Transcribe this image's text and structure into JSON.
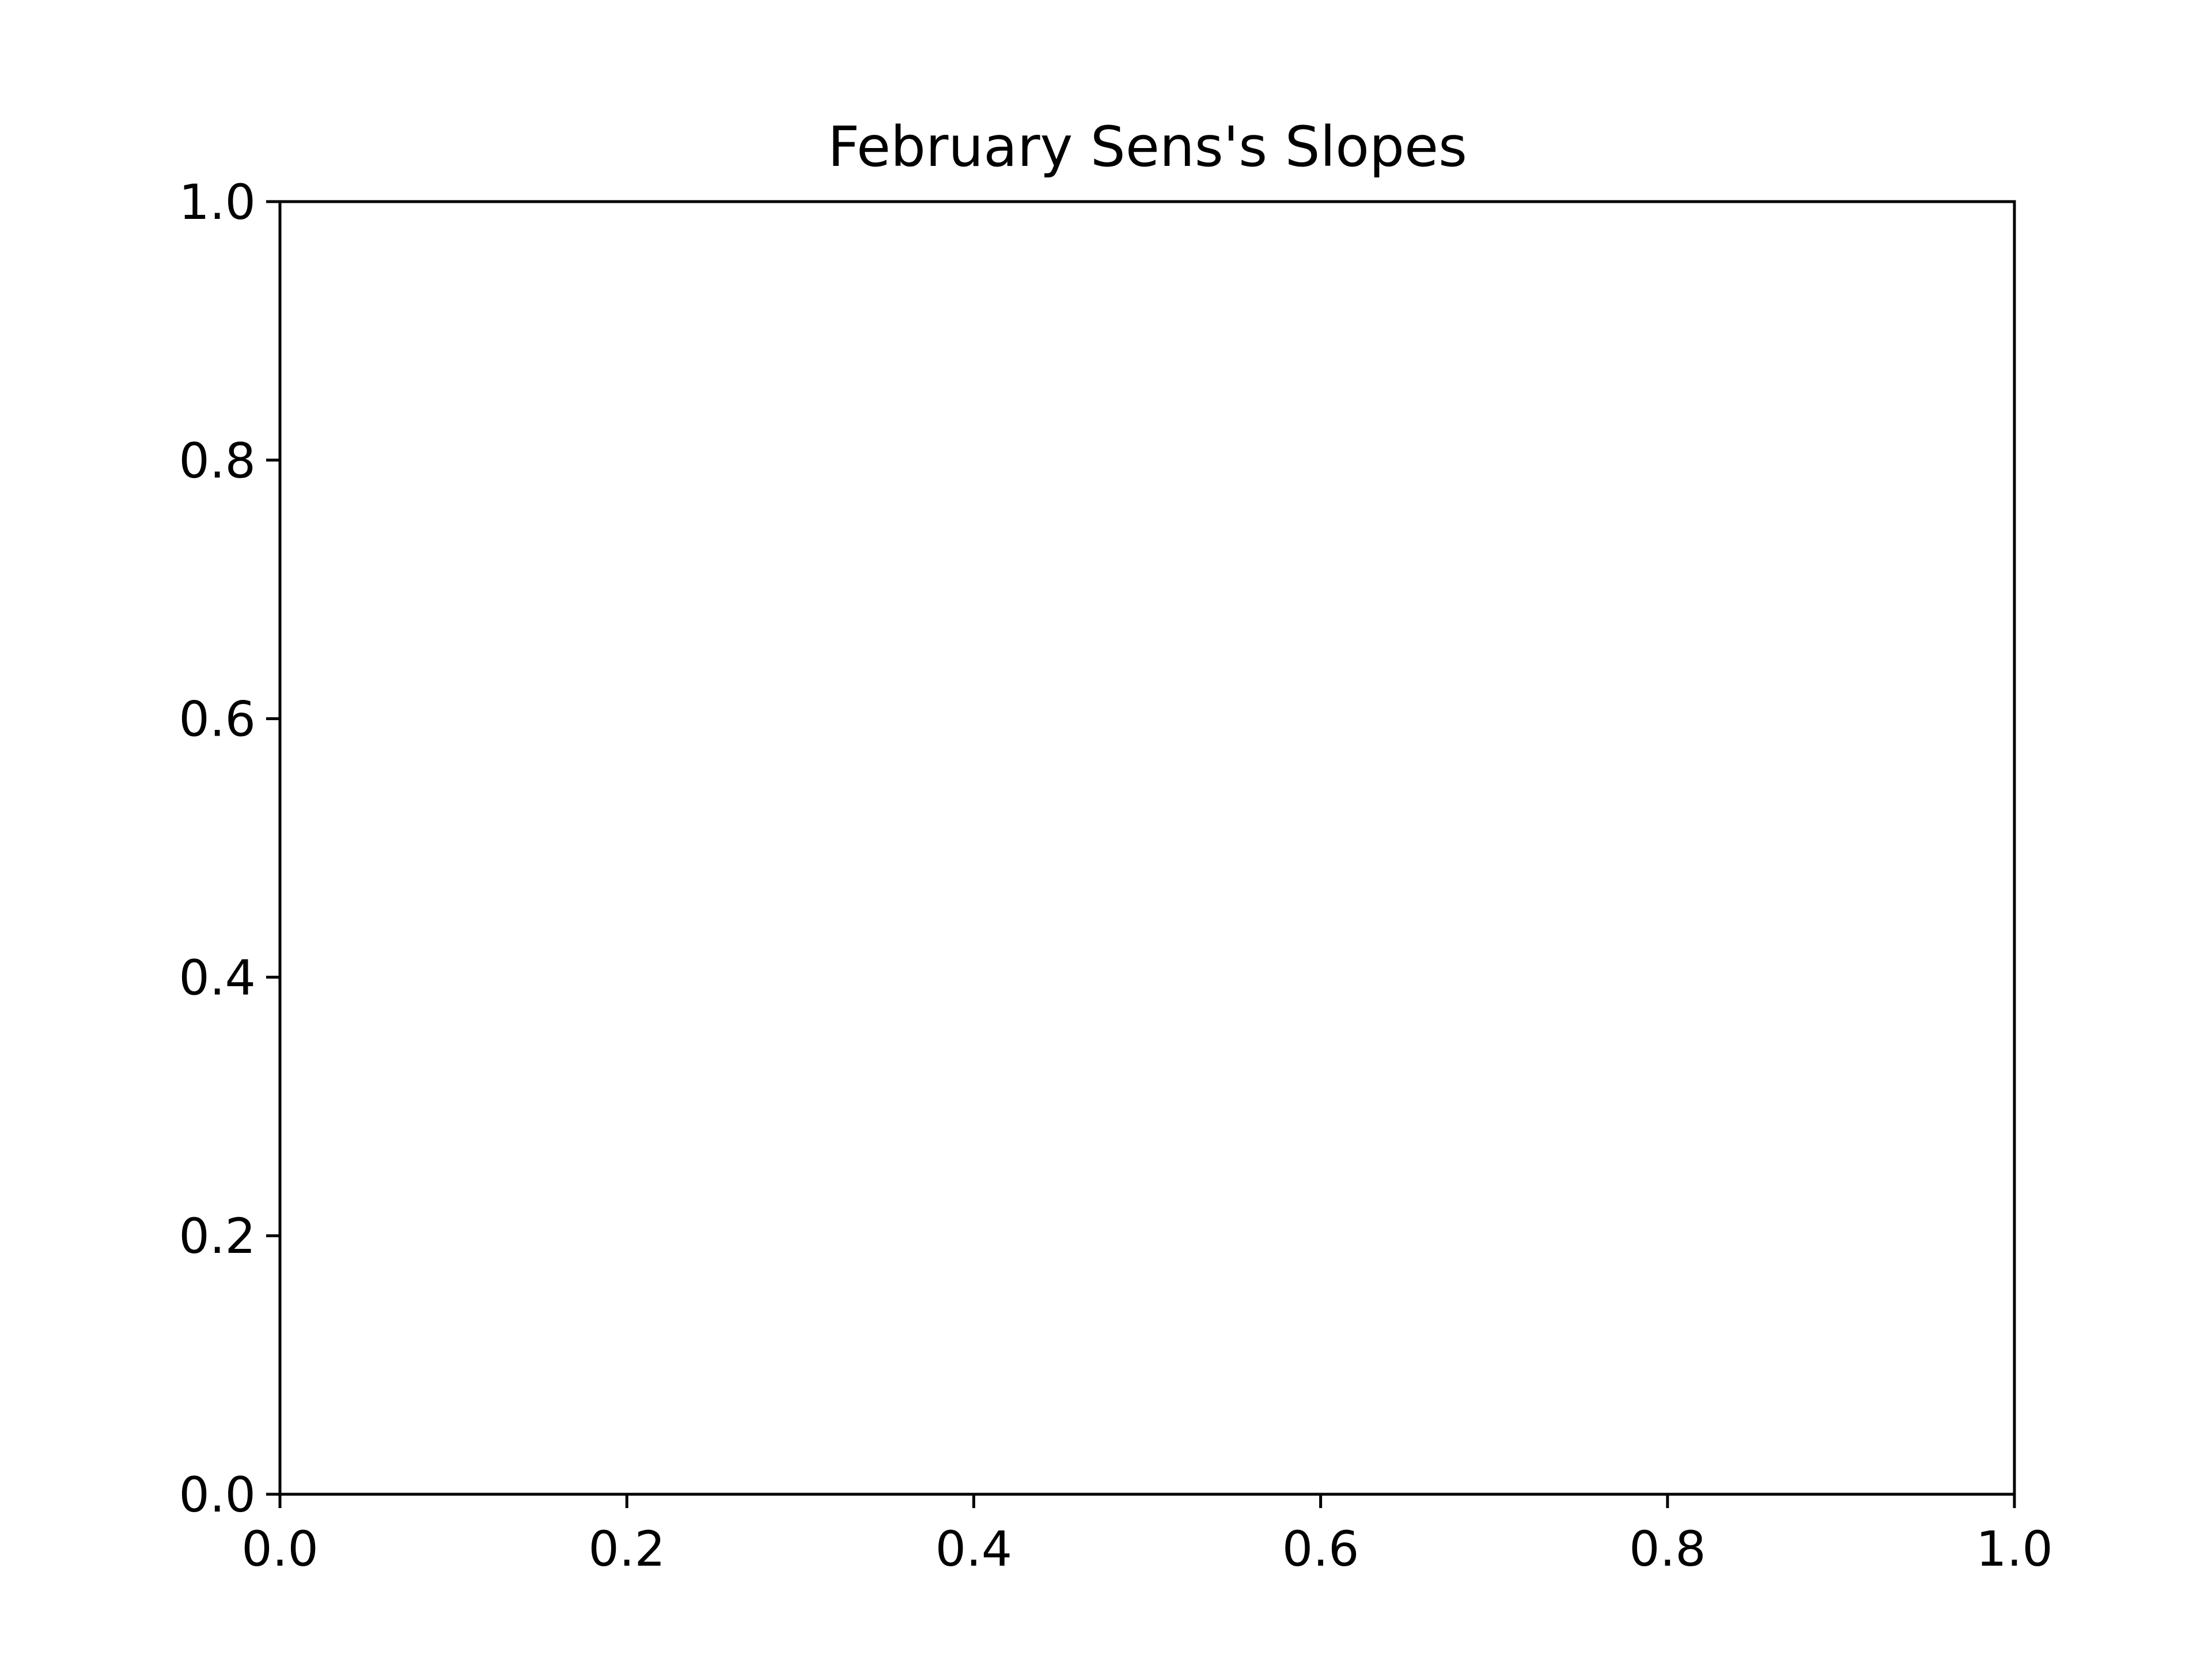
{
  "chart_data": {
    "type": "line",
    "title": "February Sens's Slopes",
    "xlabel": "",
    "ylabel": "",
    "xlim": [
      0.0,
      1.0
    ],
    "ylim": [
      0.0,
      1.0
    ],
    "x_ticks": [
      0.0,
      0.2,
      0.4,
      0.6,
      0.8,
      1.0
    ],
    "x_tick_labels": [
      "0.0",
      "0.2",
      "0.4",
      "0.6",
      "0.8",
      "1.0"
    ],
    "y_ticks": [
      0.0,
      0.2,
      0.4,
      0.6,
      0.8,
      1.0
    ],
    "y_tick_labels": [
      "0.0",
      "0.2",
      "0.4",
      "0.6",
      "0.8",
      "1.0"
    ],
    "series": [],
    "grid": false,
    "legend": "none"
  },
  "colors": {
    "background": "#ffffff",
    "axis": "#000000",
    "text": "#000000"
  }
}
